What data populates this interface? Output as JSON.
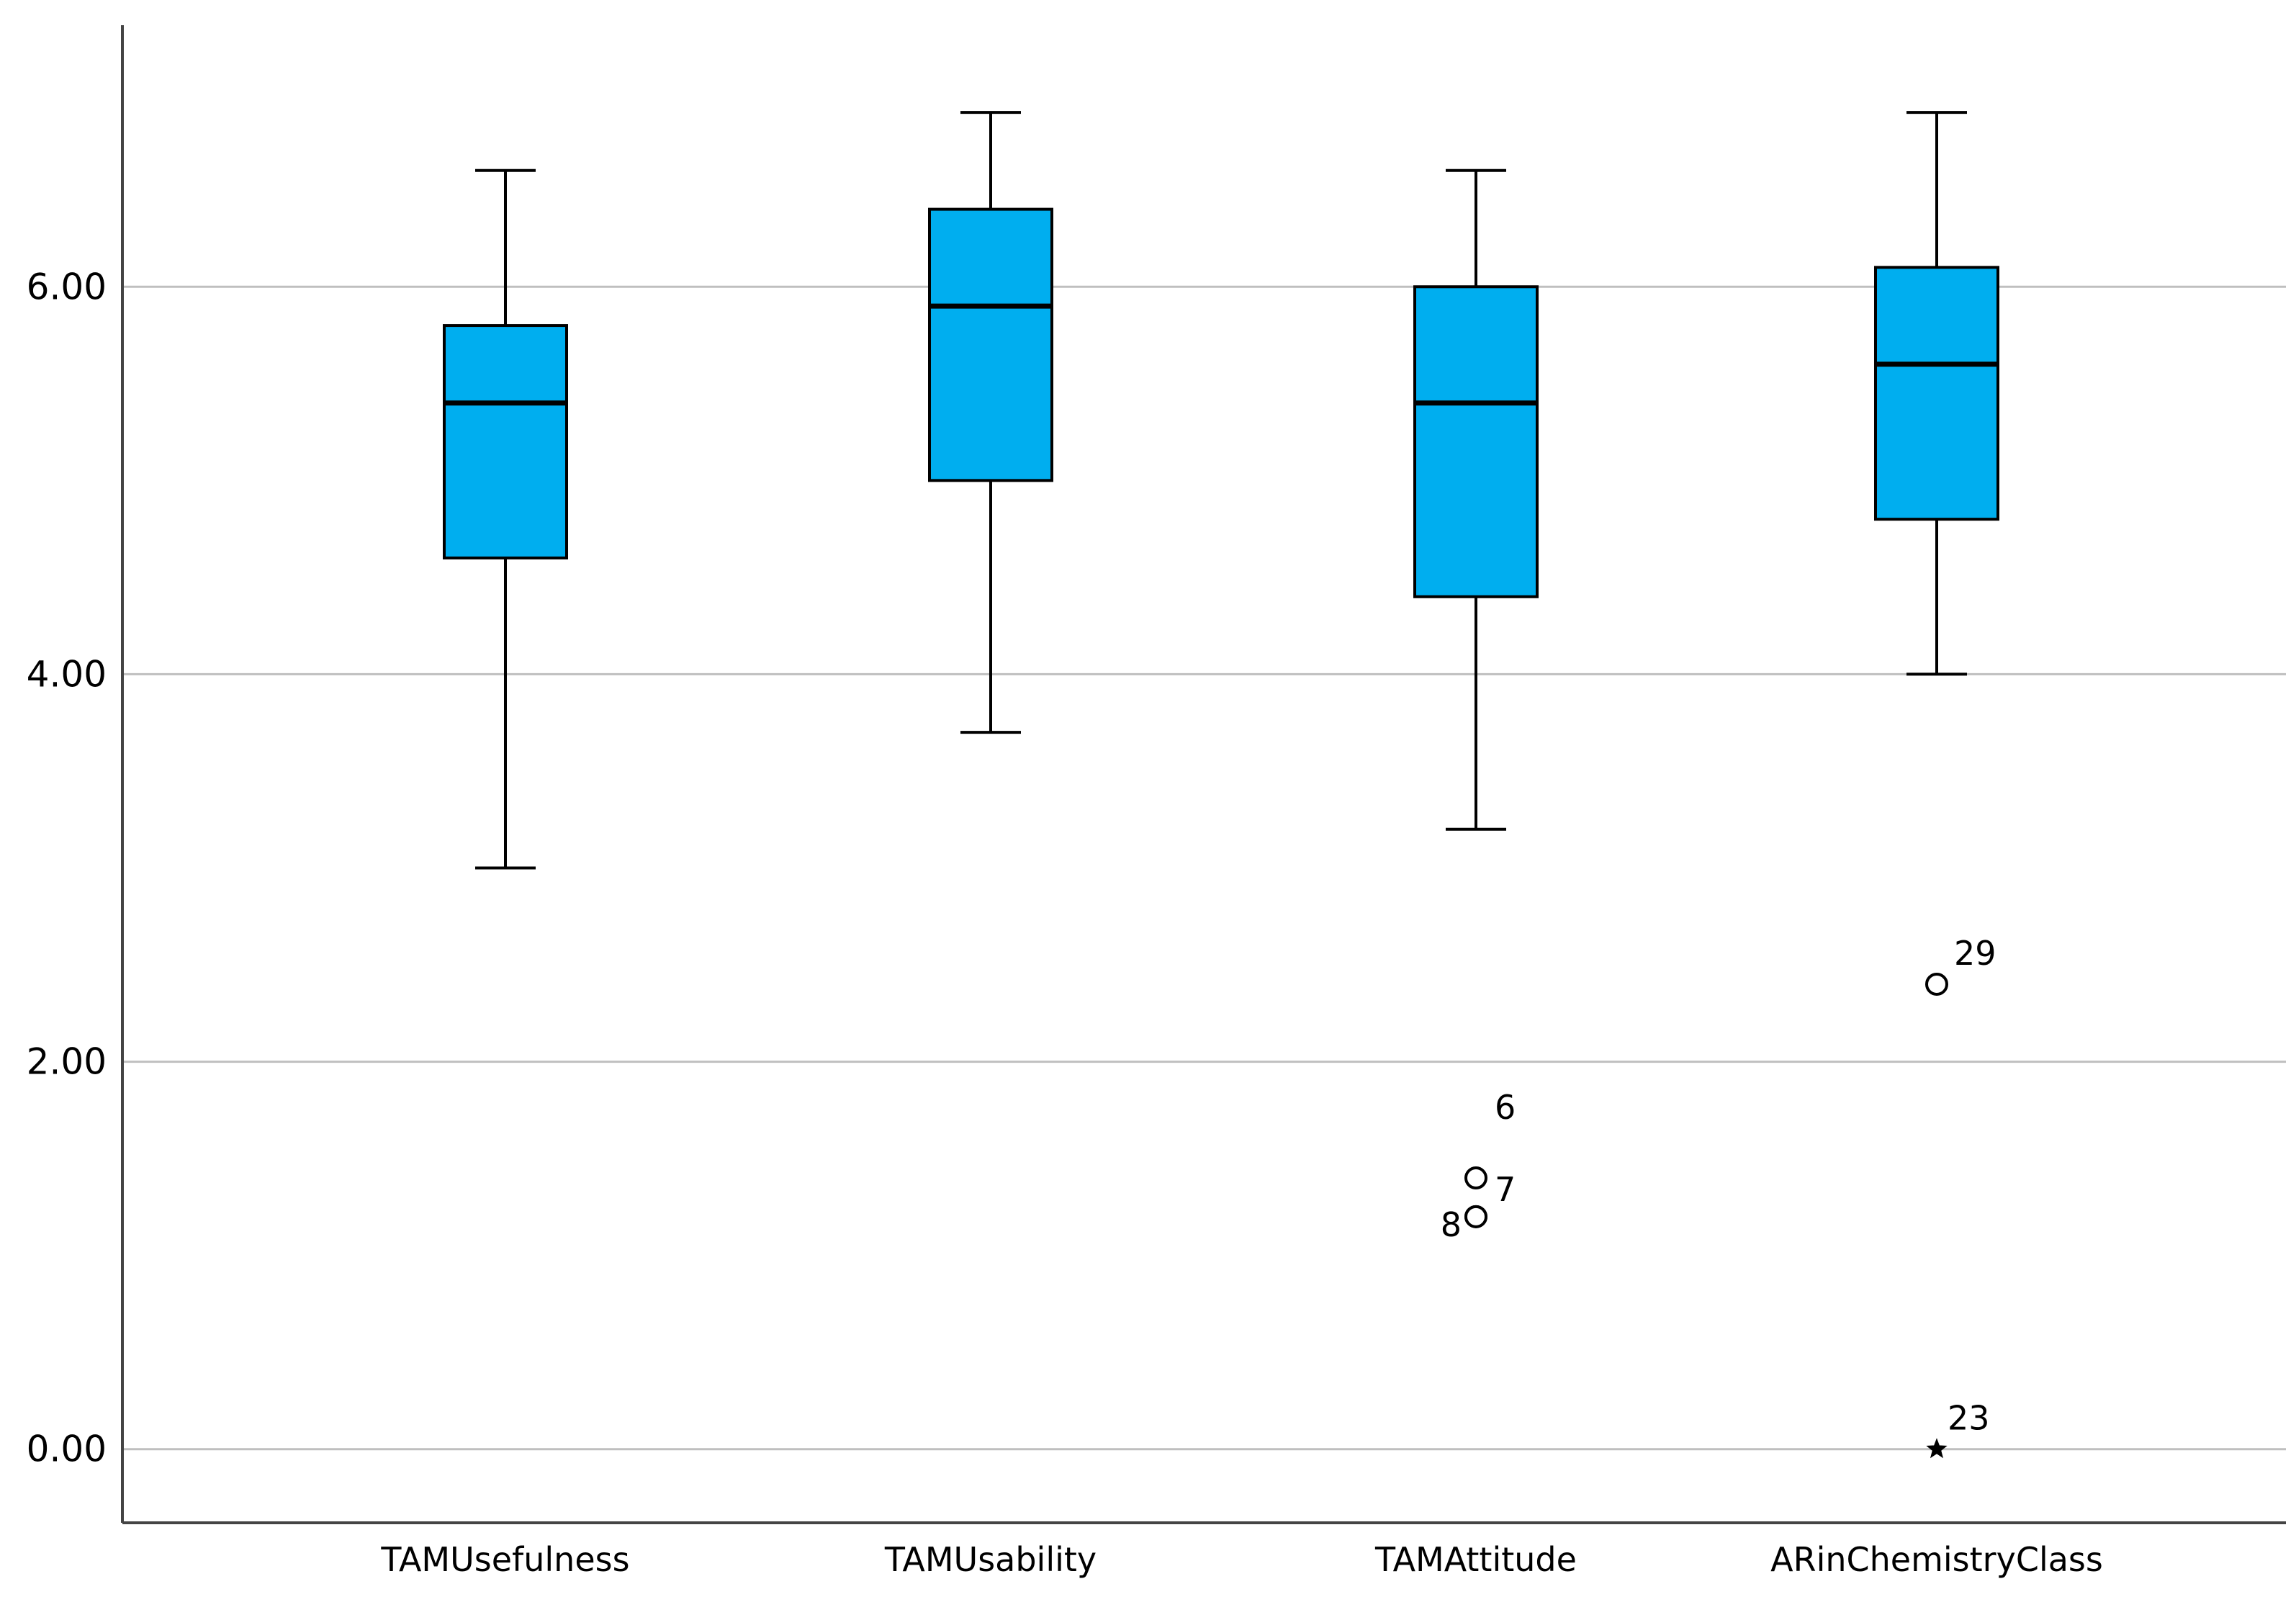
{
  "chart_data": {
    "type": "boxplot",
    "title": "",
    "xlabel": "",
    "ylabel": "",
    "ylim": [
      -0.38,
      7.35
    ],
    "grid": true,
    "y_ticks": [
      0,
      2,
      4,
      6
    ],
    "y_tick_labels": [
      "0.00",
      "2.00",
      "4.00",
      "6.00"
    ],
    "categories": [
      "TAMUsefulness",
      "TAMUsability",
      "TAMAttitude",
      "ARinChemistryClass"
    ],
    "boxes": [
      {
        "name": "TAMUsefulness",
        "whisker_low": 3.0,
        "q1": 4.6,
        "median": 5.4,
        "q3": 5.8,
        "whisker_high": 6.6,
        "outliers": []
      },
      {
        "name": "TAMUsability",
        "whisker_low": 3.7,
        "q1": 5.0,
        "median": 5.9,
        "q3": 6.4,
        "whisker_high": 6.9,
        "outliers": []
      },
      {
        "name": "TAMAttitude",
        "whisker_low": 3.2,
        "q1": 4.4,
        "median": 5.4,
        "q3": 6.0,
        "whisker_high": 6.6,
        "outliers": [
          {
            "value": 1.4,
            "label": "6",
            "marker": "circle"
          },
          {
            "value": 1.2,
            "label": "7",
            "marker": "circle"
          },
          {
            "value": 1.2,
            "label": "8",
            "marker": "circle"
          }
        ]
      },
      {
        "name": "ARinChemistryClass",
        "whisker_low": 4.0,
        "q1": 4.8,
        "median": 5.6,
        "q3": 6.1,
        "whisker_high": 6.9,
        "outliers": [
          {
            "value": 2.4,
            "label": "29",
            "marker": "circle"
          },
          {
            "value": 0.0,
            "label": "23",
            "marker": "star"
          }
        ]
      }
    ],
    "colors": {
      "box_fill": "#00AEEF",
      "box_stroke": "#000000",
      "median": "#000000",
      "grid": "#BFBFBF",
      "axis": "#444444"
    }
  }
}
